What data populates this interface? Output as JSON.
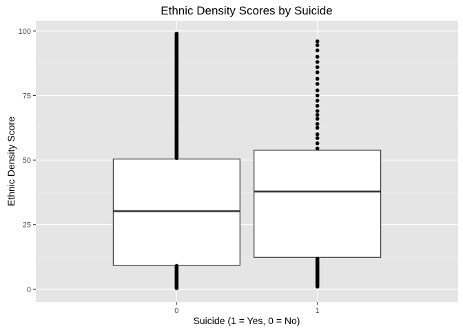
{
  "chart_data": {
    "type": "boxplot",
    "title": "Ethnic Density Scores by Suicide",
    "xlabel": "Suicide (1 = Yes, 0 = No)",
    "ylabel": "Ethnic Density Score",
    "categories": [
      "0",
      "1"
    ],
    "ylim": [
      -5,
      104
    ],
    "yticks": [
      0,
      25,
      50,
      75,
      100
    ],
    "ytick_labels": [
      "0",
      "25",
      "50",
      "75",
      "100"
    ],
    "grid": true,
    "boxes": [
      {
        "category": "0",
        "q1": 9.2,
        "median": 30.2,
        "q3": 50.4,
        "whisker_low": 9.2,
        "whisker_high": 50.4,
        "outlier_ranges": [
          [
            0.2,
            9.0
          ],
          [
            50.6,
            99.0
          ]
        ]
      },
      {
        "category": "1",
        "q1": 12.3,
        "median": 37.8,
        "q3": 53.8,
        "whisker_low": 12.3,
        "whisker_high": 53.8,
        "outlier_ranges": [
          [
            0.8,
            11.8
          ]
        ],
        "outliers": [
          54.5,
          56.5,
          58.5,
          60.0,
          62.5,
          64.0,
          66.0,
          67.5,
          69.0,
          71.0,
          73.0,
          75.0,
          77.0,
          79.5,
          81.5,
          84.0,
          86.0,
          88.0,
          90.0,
          92.5,
          94.5,
          96.0
        ]
      }
    ]
  },
  "colors": {
    "panel": "#e5e5e5",
    "grid_major": "#ffffff",
    "box_fill": "#ffffff",
    "box_line": "#333333",
    "points": "#000000",
    "text": "#000000",
    "tick_text": "#4d4d4d",
    "tick_mark": "#333333"
  }
}
